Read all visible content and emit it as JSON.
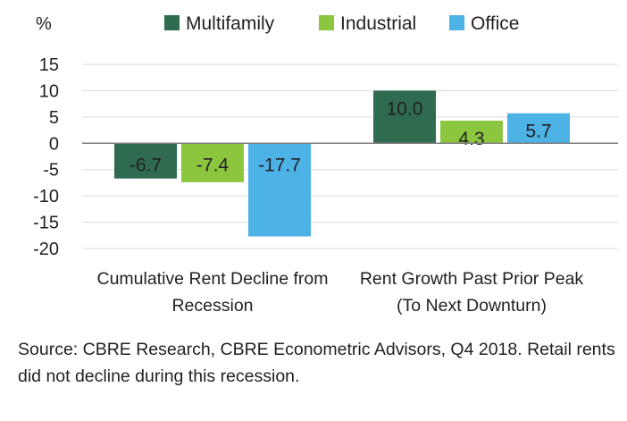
{
  "chart_data": {
    "type": "bar",
    "ylabel": "%",
    "ylim": [
      -20,
      15
    ],
    "ytick_step": 5,
    "grid": true,
    "legend_position": "top",
    "categories": [
      [
        "Cumulative Rent Decline from",
        "Recession"
      ],
      [
        "Rent Growth Past Prior Peak",
        "(To Next Downturn)"
      ]
    ],
    "series": [
      {
        "name": "Multifamily",
        "color": "#2f6b4f",
        "values": [
          -6.7,
          10.0
        ],
        "labels": [
          "-6.7",
          "10.0"
        ]
      },
      {
        "name": "Industrial",
        "color": "#8cc63f",
        "values": [
          -7.4,
          4.3
        ],
        "labels": [
          "-7.4",
          "4.3"
        ]
      },
      {
        "name": "Office",
        "color": "#4db3e6",
        "values": [
          -17.7,
          5.7
        ],
        "labels": [
          "-17.7",
          "5.7"
        ]
      }
    ]
  },
  "source_note": "Source: CBRE Research, CBRE Econometric Advisors, Q4 2018. Retail rents did not decline during this recession."
}
